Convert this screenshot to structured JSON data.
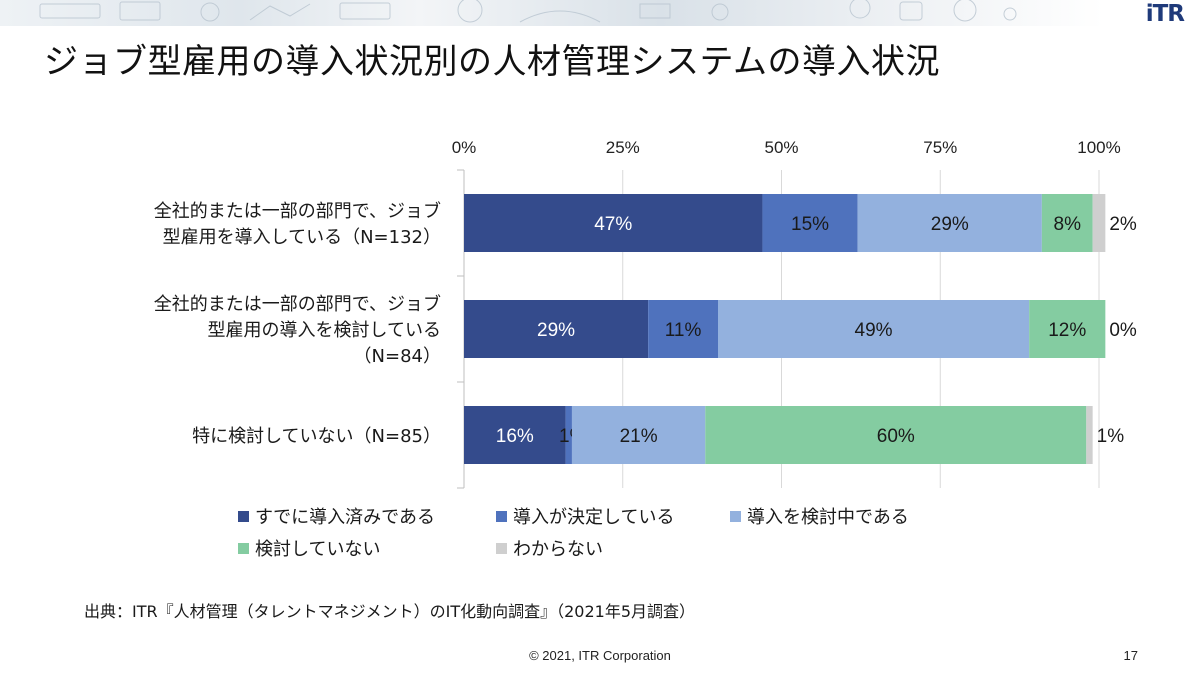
{
  "header": {
    "logo_text": "iTR",
    "title": "ジョブ型雇用の導入状況別の人材管理システムの導入状況"
  },
  "chart_data": {
    "type": "bar",
    "orientation": "horizontal",
    "stacked": "percent",
    "xlim": [
      0,
      100
    ],
    "x_ticks": [
      "0%",
      "25%",
      "50%",
      "75%",
      "100%"
    ],
    "categories": [
      [
        "全社的または一部の部門で、ジョブ",
        "型雇用を導入している（N=132）"
      ],
      [
        "全社的または一部の部門で、ジョブ",
        "型雇用の導入を検討している",
        "（N=84）"
      ],
      [
        "特に検討していない（N=85）"
      ]
    ],
    "series": [
      {
        "name": "すでに導入済みである",
        "color": "#344b8c",
        "values": [
          47,
          29,
          16
        ],
        "labels": [
          "47%",
          "29%",
          "16%"
        ]
      },
      {
        "name": "導入が決定している",
        "color": "#4f72bd",
        "values": [
          15,
          11,
          1
        ],
        "labels": [
          "15%",
          "11%",
          "1%"
        ]
      },
      {
        "name": "導入を検討中である",
        "color": "#93b1de",
        "values": [
          29,
          49,
          21
        ],
        "labels": [
          "29%",
          "49%",
          "21%"
        ]
      },
      {
        "name": "検討していない",
        "color": "#84cca1",
        "values": [
          8,
          12,
          60
        ],
        "labels": [
          "8%",
          "12%",
          "60%"
        ]
      },
      {
        "name": "わからない",
        "color": "#cfcfcf",
        "values": [
          2,
          0,
          1
        ],
        "labels": [
          "2%",
          "0%",
          "1%"
        ]
      }
    ],
    "legend_position": "bottom",
    "grid": true
  },
  "footer": {
    "source": "出典：ITR『人材管理（タレントマネジメント）のIT化動向調査』（2021年5月調査）",
    "copyright": "© 2021, ITR Corporation",
    "page_number": "17"
  }
}
